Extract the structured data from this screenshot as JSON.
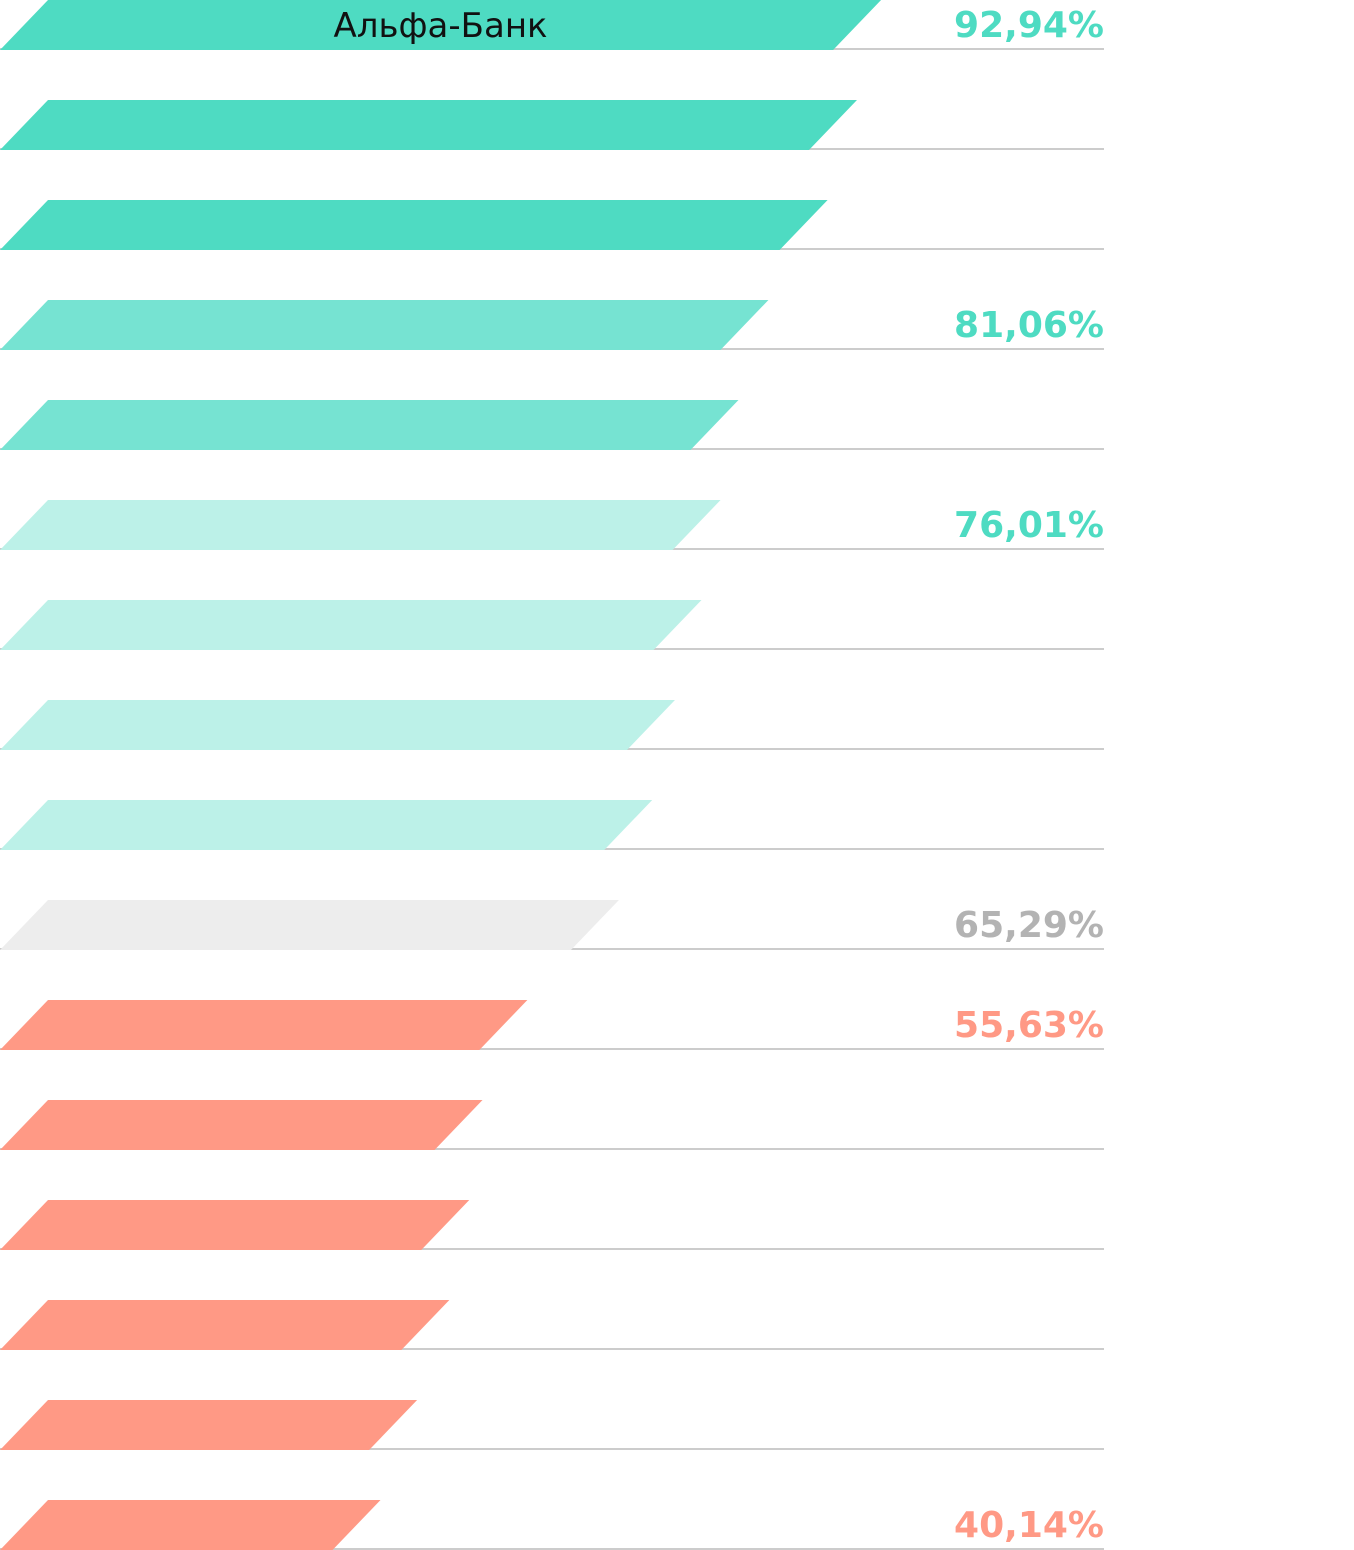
{
  "chart_data": {
    "type": "bar",
    "orientation": "horizontal",
    "categories": [
      "Альфа-Банк",
      "",
      "",
      "",
      "",
      "",
      "",
      "",
      "",
      "",
      "",
      "",
      "",
      "",
      "",
      ""
    ],
    "values": [
      92.94,
      90.4,
      87.3,
      81.06,
      77.9,
      76.01,
      74.0,
      71.2,
      68.8,
      65.29,
      55.63,
      50.9,
      49.5,
      47.4,
      44.0,
      40.14
    ],
    "value_labels": [
      "92,94%",
      "",
      "",
      "81,06%",
      "",
      "76,01%",
      "",
      "",
      "",
      "65,29%",
      "55,63%",
      "",
      "",
      "",
      "",
      "40,14%"
    ],
    "bar_colors": [
      "#4edbc2",
      "#4edbc2",
      "#4edbc2",
      "#76e3d2",
      "#76e3d2",
      "#bcf1e8",
      "#bcf1e8",
      "#bcf1e8",
      "#bcf1e8",
      "#ededed",
      "#ff9985",
      "#ff9985",
      "#ff9985",
      "#ff9985",
      "#ff9985",
      "#ff9985"
    ],
    "label_colors": [
      "#4edbc2",
      "#4edbc2",
      "#4edbc2",
      "#4edbc2",
      "#4edbc2",
      "#4edbc2",
      "#4edbc2",
      "#4edbc2",
      "#4edbc2",
      "#b3b3b3",
      "#ff9985",
      "#ff9985",
      "#ff9985",
      "#ff9985",
      "#ff9985",
      "#ff9985"
    ],
    "baseline_color": "#cccccc",
    "xlim": [
      0,
      100
    ],
    "grid": false,
    "legend": "none",
    "title": "",
    "xlabel": "",
    "ylabel": ""
  }
}
